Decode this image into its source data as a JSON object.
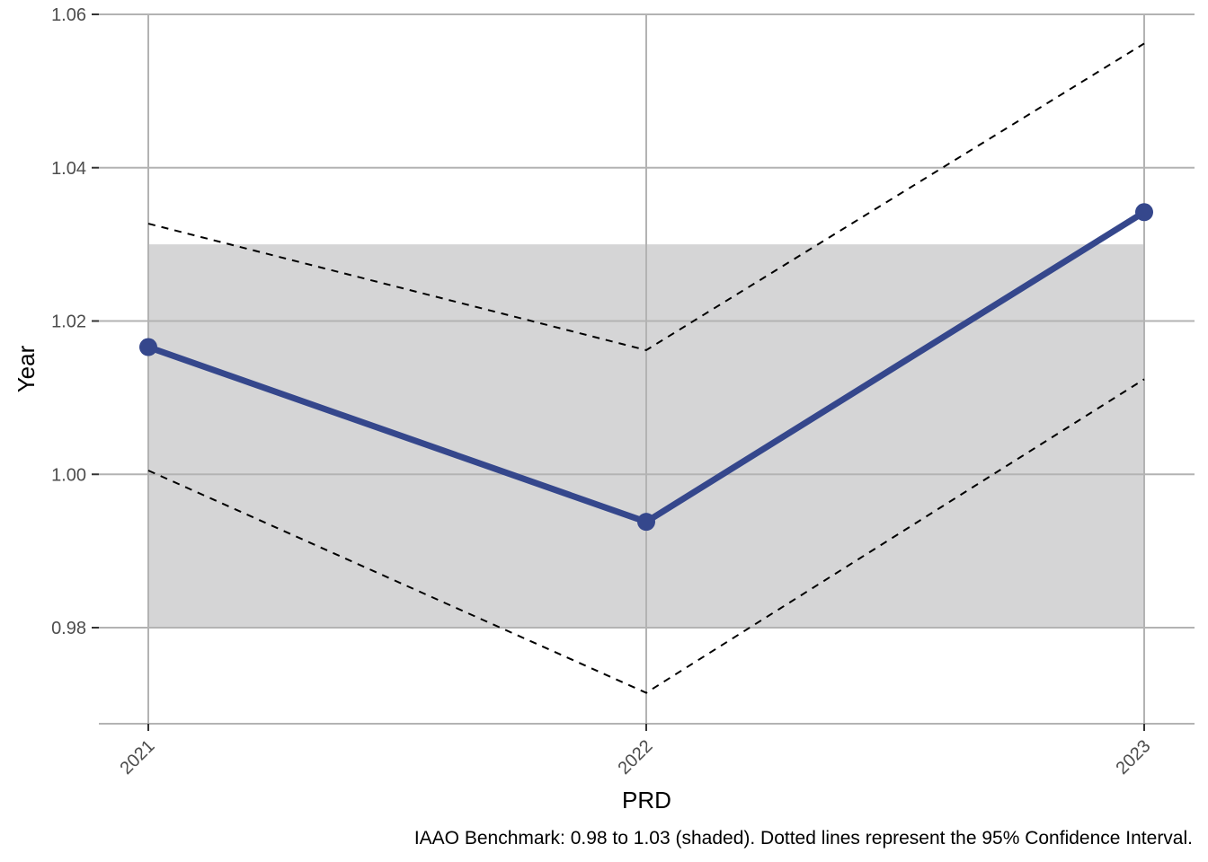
{
  "chart_data": {
    "type": "line",
    "title": "",
    "xlabel": "PRD",
    "ylabel": "Year",
    "caption": "IAAO Benchmark: 0.98 to 1.03 (shaded). Dotted lines represent the 95% Confidence Interval.",
    "categories": [
      "2021",
      "2022",
      "2023"
    ],
    "series": [
      {
        "values": [
          1.0166,
          0.9938,
          1.0342
        ],
        "color": "#35478c"
      }
    ],
    "confidence_interval": {
      "upper": [
        1.0327,
        1.0162,
        1.0562
      ],
      "lower": [
        1.0005,
        0.9715,
        1.0124
      ],
      "style": "dashed",
      "color": "#000000"
    },
    "benchmark_band": {
      "from": 0.98,
      "to": 1.03,
      "color": "#d5d5d6"
    },
    "ylim": [
      0.9675,
      1.06
    ],
    "yticks": [
      "0.98",
      "1.00",
      "1.02",
      "1.04",
      "1.06"
    ],
    "ytick_values": [
      0.98,
      1.0,
      1.02,
      1.04,
      1.06
    ],
    "grid": true,
    "legend": "none"
  }
}
